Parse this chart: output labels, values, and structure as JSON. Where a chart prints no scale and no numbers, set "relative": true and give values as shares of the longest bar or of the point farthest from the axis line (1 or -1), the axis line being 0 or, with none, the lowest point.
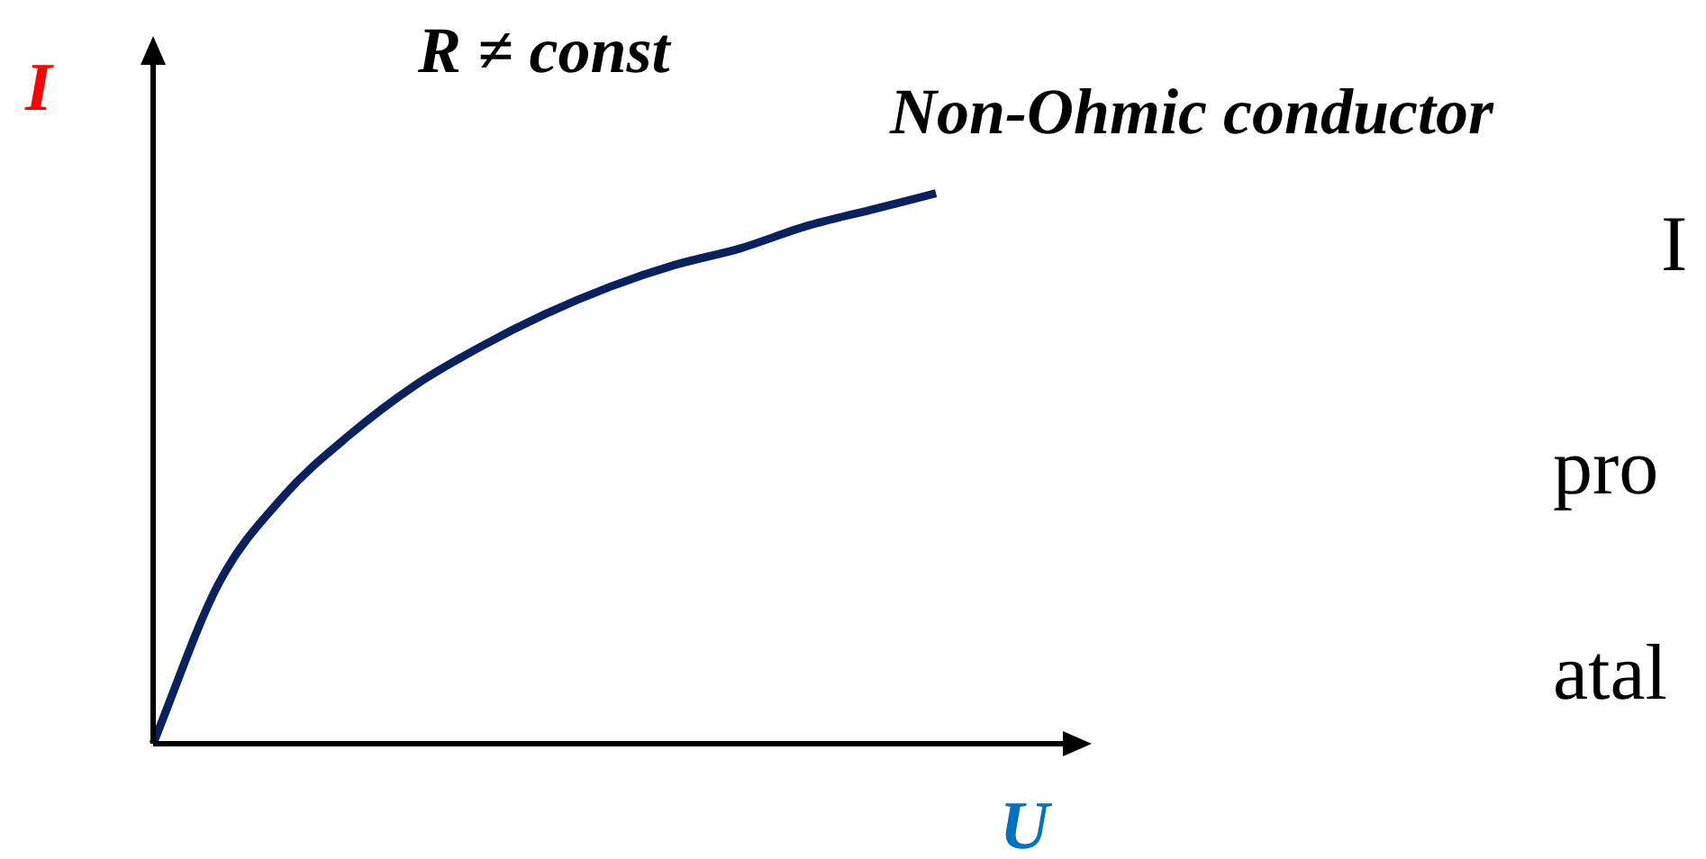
{
  "chart_data": {
    "type": "line",
    "title": "Non-Ohmic conductor",
    "xlabel": "U",
    "ylabel": "I",
    "relative": true,
    "categories": [
      null,
      null,
      null,
      null,
      null,
      null,
      null,
      null,
      null,
      null,
      null,
      null,
      null,
      null,
      null
    ],
    "series": [
      {
        "color": "#0a2160",
        "values": [
          0,
          0.29,
          0.45,
          0.56,
          0.65,
          0.72,
          0.78,
          0.83,
          0.87,
          0.9,
          0.94,
          0.97,
          1,
          null,
          null
        ]
      }
    ],
    "annotations": [
      "R ≠ const",
      "I",
      "pro",
      "atal"
    ],
    "grid": false,
    "legend": false,
    "marker": "none",
    "line_style": "solid"
  }
}
